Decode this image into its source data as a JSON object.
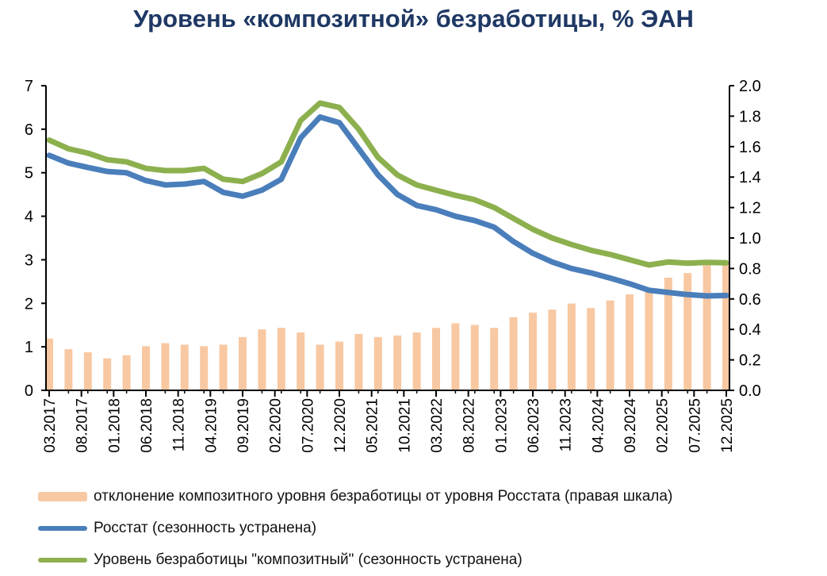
{
  "title": "Уровень «композитной» безработицы, % ЭАН",
  "colors": {
    "bars": "#f8c8a2",
    "rosstat": "#4a7ebb",
    "composite": "#8db04e",
    "title": "#1f3864"
  },
  "chart_data": {
    "type": "line",
    "title": "Уровень «композитной» безработицы, % ЭАН",
    "x_tick_labels": [
      "03.2017",
      "08.2017",
      "01.2018",
      "06.2018",
      "11.2018",
      "04.2019",
      "09.2019",
      "02.2020",
      "07.2020",
      "12.2020",
      "05.2021",
      "10.2021",
      "03.2022",
      "08.2022",
      "01.2023",
      "06.2023",
      "11.2023",
      "04.2024",
      "09.2024",
      "02.2025",
      "07.2025",
      "12.2025"
    ],
    "y_left_range": [
      0,
      7
    ],
    "y_left_ticks": [
      "0",
      "1",
      "2",
      "3",
      "4",
      "5",
      "6",
      "7"
    ],
    "y_right_range": [
      0,
      2.0
    ],
    "y_right_ticks": [
      "0.0",
      "0.2",
      "0.4",
      "0.6",
      "0.8",
      "1.0",
      "1.2",
      "1.4",
      "1.6",
      "1.8",
      "2.0"
    ],
    "grid": false,
    "legend_position": "bottom",
    "series": [
      {
        "name": "отклонение композитного уровня безработицы от уровня Росстата (правая шкала)",
        "type": "bar",
        "axis": "right",
        "values": [
          0.34,
          0.27,
          0.25,
          0.21,
          0.23,
          0.29,
          0.31,
          0.3,
          0.29,
          0.3,
          0.35,
          0.4,
          0.41,
          0.38,
          0.3,
          0.32,
          0.37,
          0.35,
          0.36,
          0.38,
          0.41,
          0.44,
          0.43,
          0.41,
          0.48,
          0.51,
          0.53,
          0.57,
          0.54,
          0.59,
          0.63,
          0.65,
          0.74,
          0.77,
          0.82,
          0.84
        ]
      },
      {
        "name": "Росстат (сезонность устранена)",
        "type": "line",
        "axis": "left",
        "values": [
          5.4,
          5.22,
          5.12,
          5.03,
          5.0,
          4.82,
          4.72,
          4.74,
          4.8,
          4.55,
          4.46,
          4.6,
          4.85,
          5.8,
          6.28,
          6.15,
          5.55,
          4.95,
          4.5,
          4.25,
          4.15,
          4.0,
          3.9,
          3.75,
          3.42,
          3.15,
          2.95,
          2.8,
          2.7,
          2.58,
          2.45,
          2.3,
          2.25,
          2.2,
          2.17,
          2.18
        ]
      },
      {
        "name": "Уровень безработицы \"композитный\" (сезонность устранена)",
        "type": "line",
        "axis": "left",
        "values": [
          5.75,
          5.55,
          5.45,
          5.3,
          5.25,
          5.1,
          5.05,
          5.05,
          5.1,
          4.85,
          4.8,
          4.98,
          5.25,
          6.2,
          6.6,
          6.5,
          6.0,
          5.35,
          4.95,
          4.72,
          4.6,
          4.48,
          4.38,
          4.2,
          3.95,
          3.7,
          3.5,
          3.35,
          3.22,
          3.12,
          3.0,
          2.88,
          2.95,
          2.92,
          2.94,
          2.93
        ]
      }
    ]
  }
}
